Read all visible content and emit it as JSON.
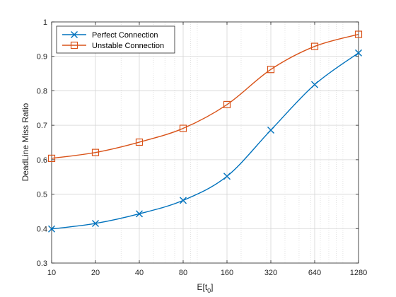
{
  "chart_data": {
    "type": "line",
    "xscale": "log2",
    "x": [
      10,
      20,
      40,
      80,
      160,
      320,
      640,
      1280
    ],
    "x_tick_labels": [
      "10",
      "20",
      "40",
      "80",
      "160",
      "320",
      "640",
      "1280"
    ],
    "xlim": [
      10,
      1280
    ],
    "ylim": [
      0.3,
      1.0
    ],
    "y_ticks": [
      0.3,
      0.4,
      0.5,
      0.6,
      0.7,
      0.8,
      0.9,
      1
    ],
    "y_tick_labels": [
      "0.3",
      "0.4",
      "0.5",
      "0.6",
      "0.7",
      "0.8",
      "0.9",
      "1"
    ],
    "xlabel_main": "E[t",
    "xlabel_sub": "0",
    "xlabel_end": "]",
    "ylabel": "DeadLine Miss Ratio",
    "grid": true,
    "legend_position": "top-left",
    "series": [
      {
        "name": "Perfect Connection",
        "marker": "x",
        "color": "#0072BD",
        "values": [
          0.399,
          0.415,
          0.443,
          0.482,
          0.552,
          0.686,
          0.818,
          0.91
        ]
      },
      {
        "name": "Unstable Connection",
        "marker": "square",
        "color": "#D95319",
        "values": [
          0.604,
          0.621,
          0.651,
          0.691,
          0.76,
          0.862,
          0.929,
          0.964
        ]
      }
    ]
  }
}
